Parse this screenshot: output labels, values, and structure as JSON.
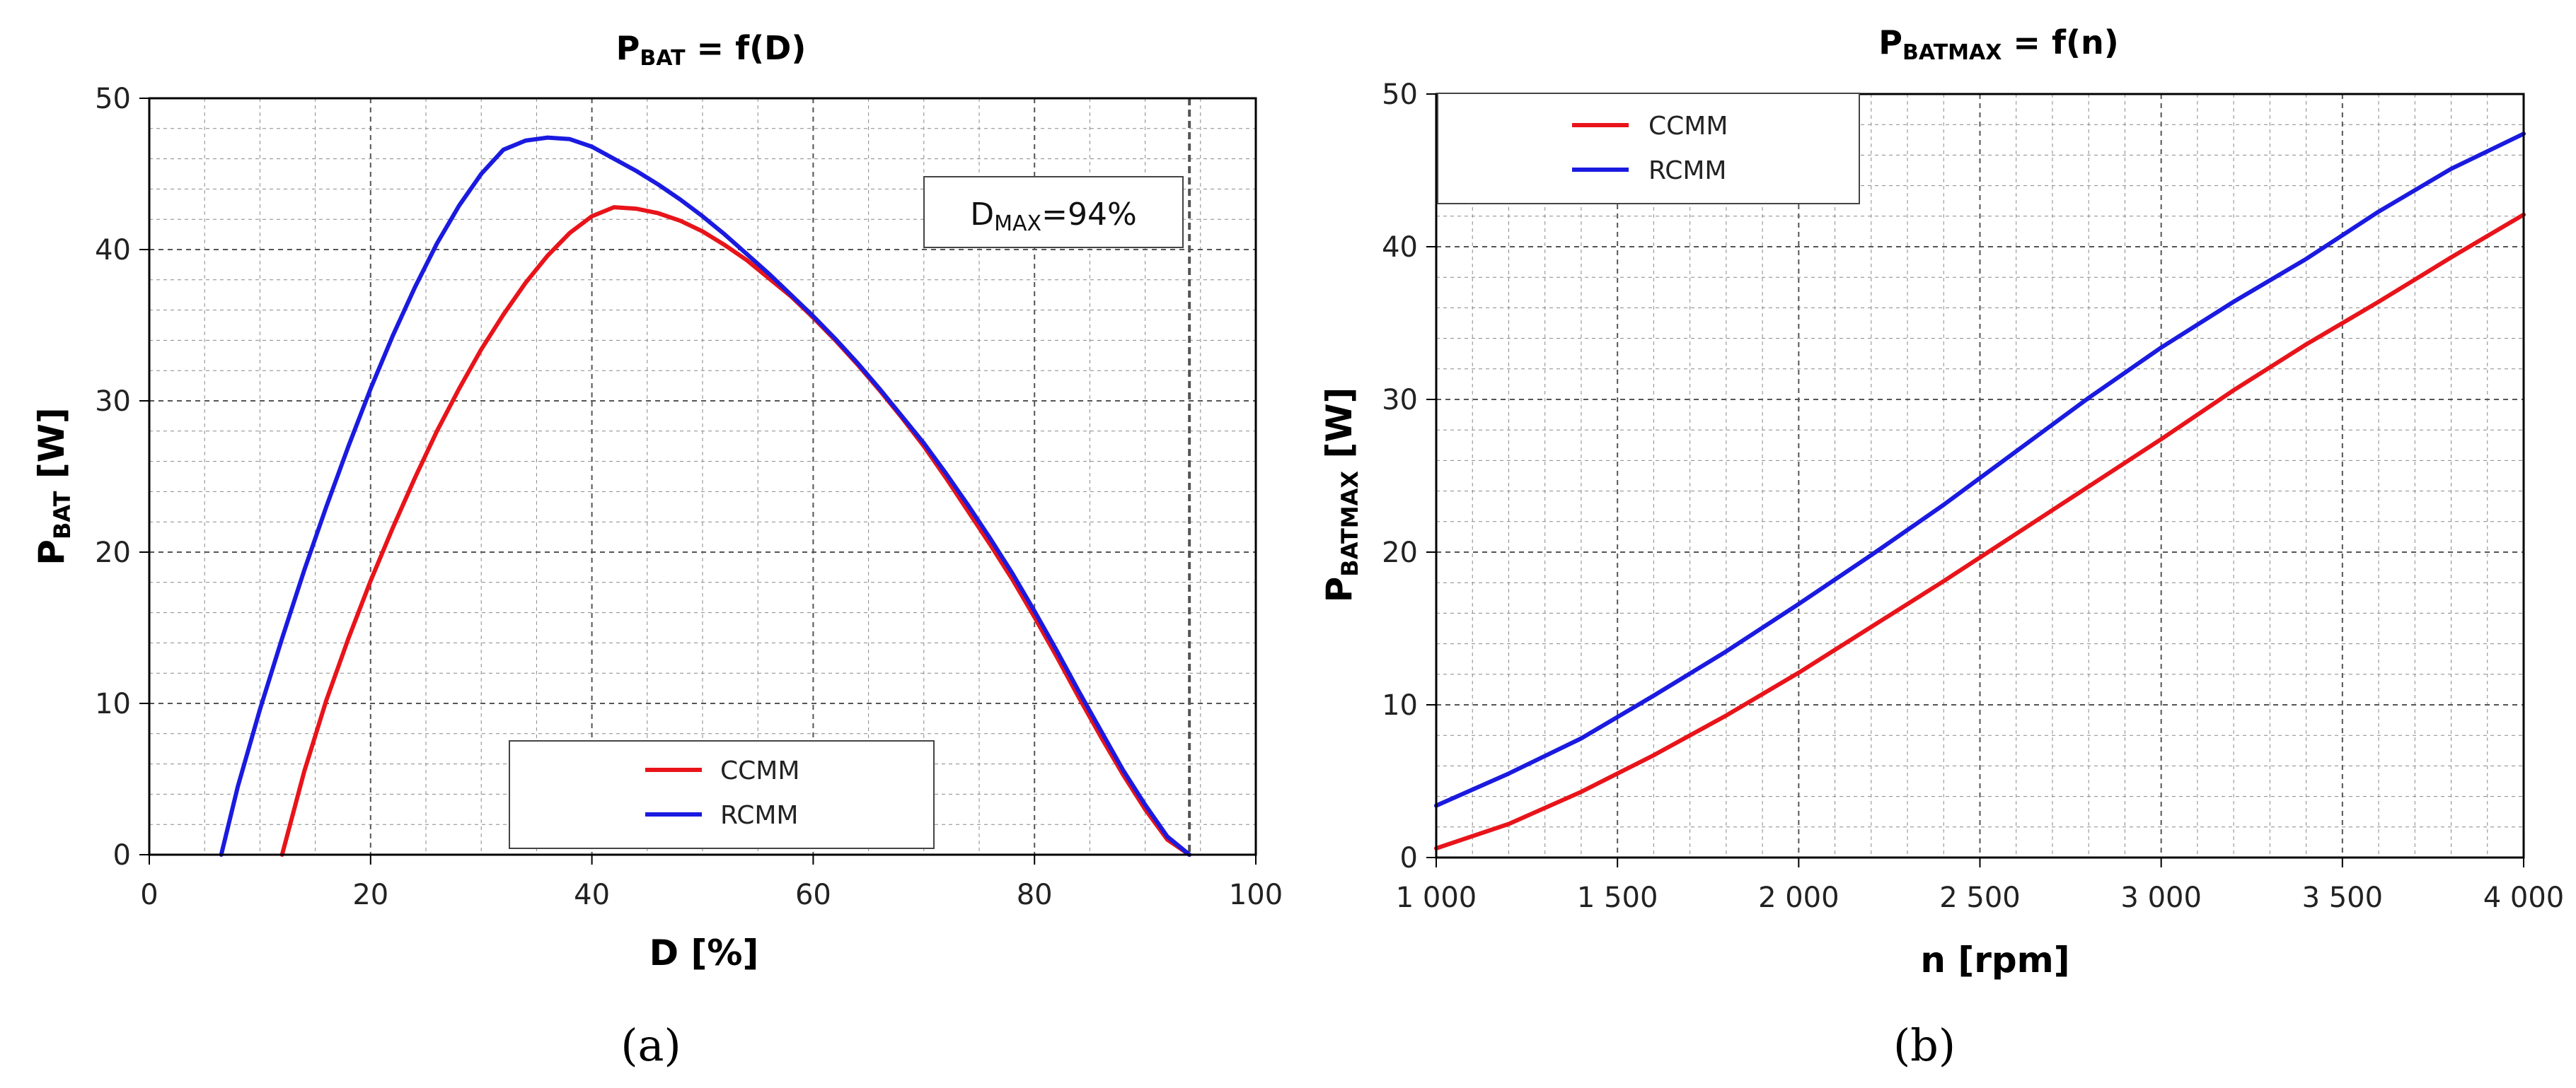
{
  "chart_data": [
    {
      "type": "line",
      "title_main": "P",
      "title_sub": "BAT",
      "title_rest": " = f(D)",
      "xlabel": "D [%]",
      "ylabel_main": "P",
      "ylabel_sub": "BAT",
      "ylabel_rest": " [W]",
      "xlim": [
        0,
        100
      ],
      "ylim": [
        0,
        50
      ],
      "x_ticks": [
        0,
        20,
        40,
        60,
        80,
        100
      ],
      "x_tick_labels": [
        "0",
        "20",
        "40",
        "60",
        "80",
        "100"
      ],
      "y_ticks": [
        0,
        10,
        20,
        30,
        40,
        50
      ],
      "y_tick_labels": [
        "0",
        "10",
        "20",
        "30",
        "40",
        "50"
      ],
      "x_minor_step": 5,
      "y_minor_step": 2,
      "grid": true,
      "legend_position": "bottom-center",
      "annotation_main": "D",
      "annotation_sub": "MAX",
      "annotation_rest": "=94%",
      "dmax_line": 94,
      "caption": "(a)",
      "series": [
        {
          "name": "CCMM",
          "color": "#e8141a",
          "x": [
            12,
            14,
            16,
            18,
            20,
            22,
            24,
            26,
            28,
            30,
            32,
            34,
            36,
            38,
            40,
            42,
            44,
            46,
            48,
            50,
            52,
            54,
            56,
            58,
            60,
            62,
            64,
            66,
            68,
            70,
            72,
            74,
            76,
            78,
            80,
            82,
            84,
            86,
            88,
            90,
            92,
            94
          ],
          "y": [
            0,
            5.5,
            10.2,
            14.3,
            18.1,
            21.6,
            24.9,
            28.0,
            30.8,
            33.4,
            35.7,
            37.8,
            39.6,
            41.1,
            42.2,
            42.8,
            42.7,
            42.4,
            41.9,
            41.2,
            40.3,
            39.3,
            38.1,
            36.9,
            35.5,
            34.0,
            32.4,
            30.7,
            28.9,
            27.0,
            24.9,
            22.7,
            20.5,
            18.2,
            15.7,
            13.1,
            10.4,
            7.8,
            5.3,
            3.0,
            1.0,
            0
          ]
        },
        {
          "name": "RCMM",
          "color": "#1a1ae0",
          "x": [
            6.5,
            8,
            10,
            12,
            14,
            16,
            18,
            20,
            22,
            24,
            26,
            28,
            30,
            32,
            34,
            36,
            38,
            40,
            42,
            44,
            46,
            48,
            50,
            52,
            54,
            56,
            58,
            60,
            62,
            64,
            66,
            68,
            70,
            72,
            74,
            76,
            78,
            80,
            82,
            84,
            86,
            88,
            90,
            92,
            94
          ],
          "y": [
            0,
            4.5,
            9.6,
            14.3,
            18.8,
            23.0,
            27.0,
            30.8,
            34.3,
            37.5,
            40.4,
            42.9,
            45.0,
            46.6,
            47.2,
            47.4,
            47.3,
            46.8,
            46.0,
            45.2,
            44.3,
            43.3,
            42.2,
            41.0,
            39.7,
            38.4,
            37.0,
            35.6,
            34.1,
            32.5,
            30.8,
            29.0,
            27.2,
            25.2,
            23.1,
            20.9,
            18.6,
            16.1,
            13.5,
            10.8,
            8.2,
            5.6,
            3.3,
            1.2,
            0
          ]
        }
      ]
    },
    {
      "type": "line",
      "title_main": "P",
      "title_sub": "BATMAX",
      "title_rest": " = f(n)",
      "xlabel": "n [rpm]",
      "ylabel_main": "P",
      "ylabel_sub": "BATMAX",
      "ylabel_rest": " [W]",
      "xlim": [
        1000,
        4000
      ],
      "ylim": [
        0,
        50
      ],
      "x_ticks": [
        1000,
        1500,
        2000,
        2500,
        3000,
        3500,
        4000
      ],
      "x_tick_labels": [
        "1 000",
        "1 500",
        "2 000",
        "2 500",
        "3 000",
        "3 500",
        "4 000"
      ],
      "y_ticks": [
        0,
        10,
        20,
        30,
        40,
        50
      ],
      "y_tick_labels": [
        "0",
        "10",
        "20",
        "30",
        "40",
        "50"
      ],
      "x_minor_step": 100,
      "y_minor_step": 2,
      "grid": true,
      "legend_position": "top-left",
      "caption": "(b)",
      "series": [
        {
          "name": "CCMM",
          "color": "#e8141a",
          "x": [
            1000,
            1200,
            1400,
            1600,
            1800,
            2000,
            2200,
            2400,
            2600,
            2800,
            3000,
            3200,
            3400,
            3600,
            3800,
            4000
          ],
          "y": [
            0.6,
            2.2,
            4.3,
            6.7,
            9.3,
            12.1,
            15.1,
            18.1,
            21.2,
            24.3,
            27.4,
            30.6,
            33.6,
            36.4,
            39.3,
            42.1
          ]
        },
        {
          "name": "RCMM",
          "color": "#1a1ae0",
          "x": [
            1000,
            1200,
            1400,
            1600,
            1800,
            2000,
            2200,
            2400,
            2600,
            2800,
            3000,
            3200,
            3400,
            3600,
            3800,
            4000
          ],
          "y": [
            3.4,
            5.5,
            7.8,
            10.6,
            13.5,
            16.6,
            19.8,
            23.1,
            26.6,
            30.1,
            33.4,
            36.4,
            39.2,
            42.3,
            45.1,
            47.4
          ]
        }
      ]
    }
  ]
}
